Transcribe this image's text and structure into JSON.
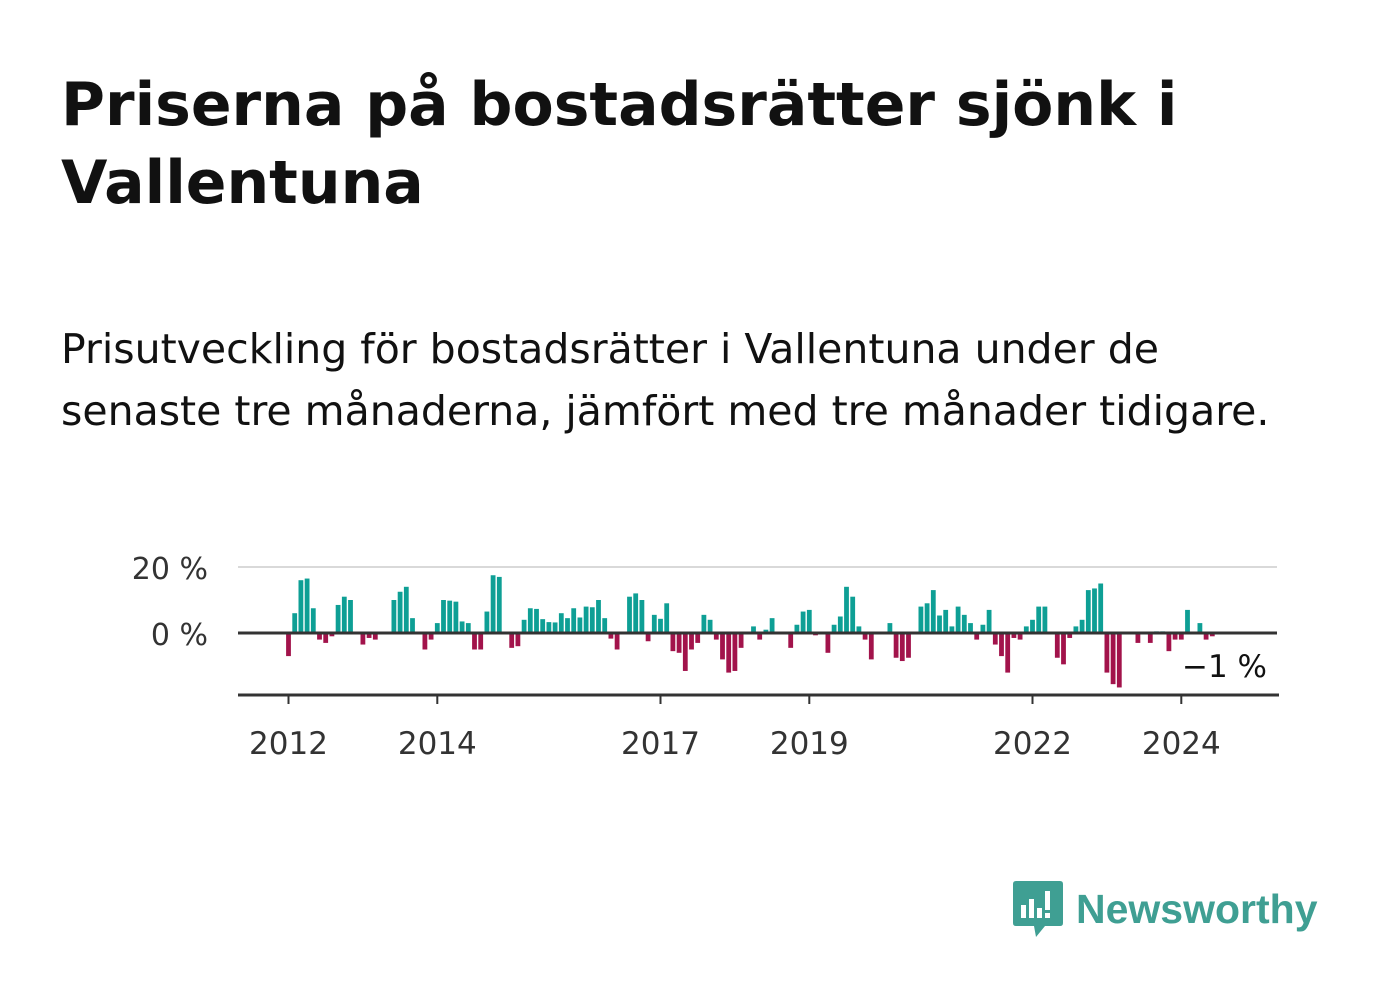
{
  "title": "Priserna på bostadsrätter sjönk i Vallentuna",
  "subtitle": "Prisutveckling för bostadsrätter i Vallentuna under de senaste tre månaderna, jämfört med tre månader tidigare.",
  "brand": {
    "name": "Newsworthy",
    "color": "#3f9f93",
    "icon": "newsworthy-logo-icon"
  },
  "colors": {
    "positive": "#0e9f95",
    "negative": "#a2134b",
    "axis": "#333333",
    "grid": "#d9d9d9"
  },
  "chart_data": {
    "type": "bar",
    "title": "Priserna på bostadsrätter sjönk i Vallentuna",
    "xlabel": "",
    "ylabel": "",
    "ylim": [
      -20,
      20
    ],
    "y_ticks": [
      {
        "value": 20,
        "label": "20 %"
      },
      {
        "value": 0,
        "label": "0 %"
      }
    ],
    "x_ticks": [
      {
        "index": 0,
        "label": "2012"
      },
      {
        "index": 24,
        "label": "2014"
      },
      {
        "index": 60,
        "label": "2017"
      },
      {
        "index": 84,
        "label": "2019"
      },
      {
        "index": 120,
        "label": "2022"
      },
      {
        "index": 144,
        "label": "2024"
      }
    ],
    "start": "2012-01",
    "grid": true,
    "last_value_label": "−1 %",
    "values": [
      -7,
      6,
      16,
      16.5,
      7.5,
      -2,
      -3,
      -1,
      8.5,
      11,
      10,
      0,
      -3.5,
      -1.5,
      -2,
      0,
      0,
      10,
      12.5,
      14,
      4.5,
      0,
      -5,
      -2,
      3,
      10,
      9.8,
      9.5,
      3.5,
      3,
      -5,
      -5,
      6.5,
      17.5,
      17,
      0,
      -4.5,
      -4,
      4,
      7.5,
      7.3,
      4.2,
      3.3,
      3.2,
      6,
      4.5,
      7.5,
      4.7,
      8,
      7.8,
      10,
      4.5,
      -1.7,
      -5,
      0,
      11,
      12,
      10,
      -2.5,
      5.5,
      4.3,
      9,
      -5.5,
      -6,
      -11.5,
      -5,
      -3,
      5.5,
      4,
      -2,
      -8,
      -12,
      -11.5,
      -4.5,
      0,
      2,
      -2,
      1,
      4.5,
      0,
      0,
      -4.5,
      2.5,
      6.5,
      7,
      -0.7,
      0,
      -6,
      2.5,
      5,
      14,
      11,
      2,
      -2,
      -8,
      0,
      0,
      3,
      -7.5,
      -8.5,
      -7.5,
      0,
      8,
      9,
      13,
      5.3,
      7,
      2,
      8,
      5.5,
      3,
      -2,
      2.5,
      7,
      -3.5,
      -7,
      -12,
      -1.5,
      -2,
      2,
      4,
      8,
      8,
      0,
      -7.5,
      -9.5,
      -1.5,
      2,
      4,
      13,
      13.5,
      15,
      -12,
      -15.5,
      -16.5,
      0,
      0,
      -3,
      0,
      -3,
      0.5,
      0.5,
      -5.5,
      -2,
      -2,
      7,
      0,
      3,
      -2,
      -1
    ]
  }
}
